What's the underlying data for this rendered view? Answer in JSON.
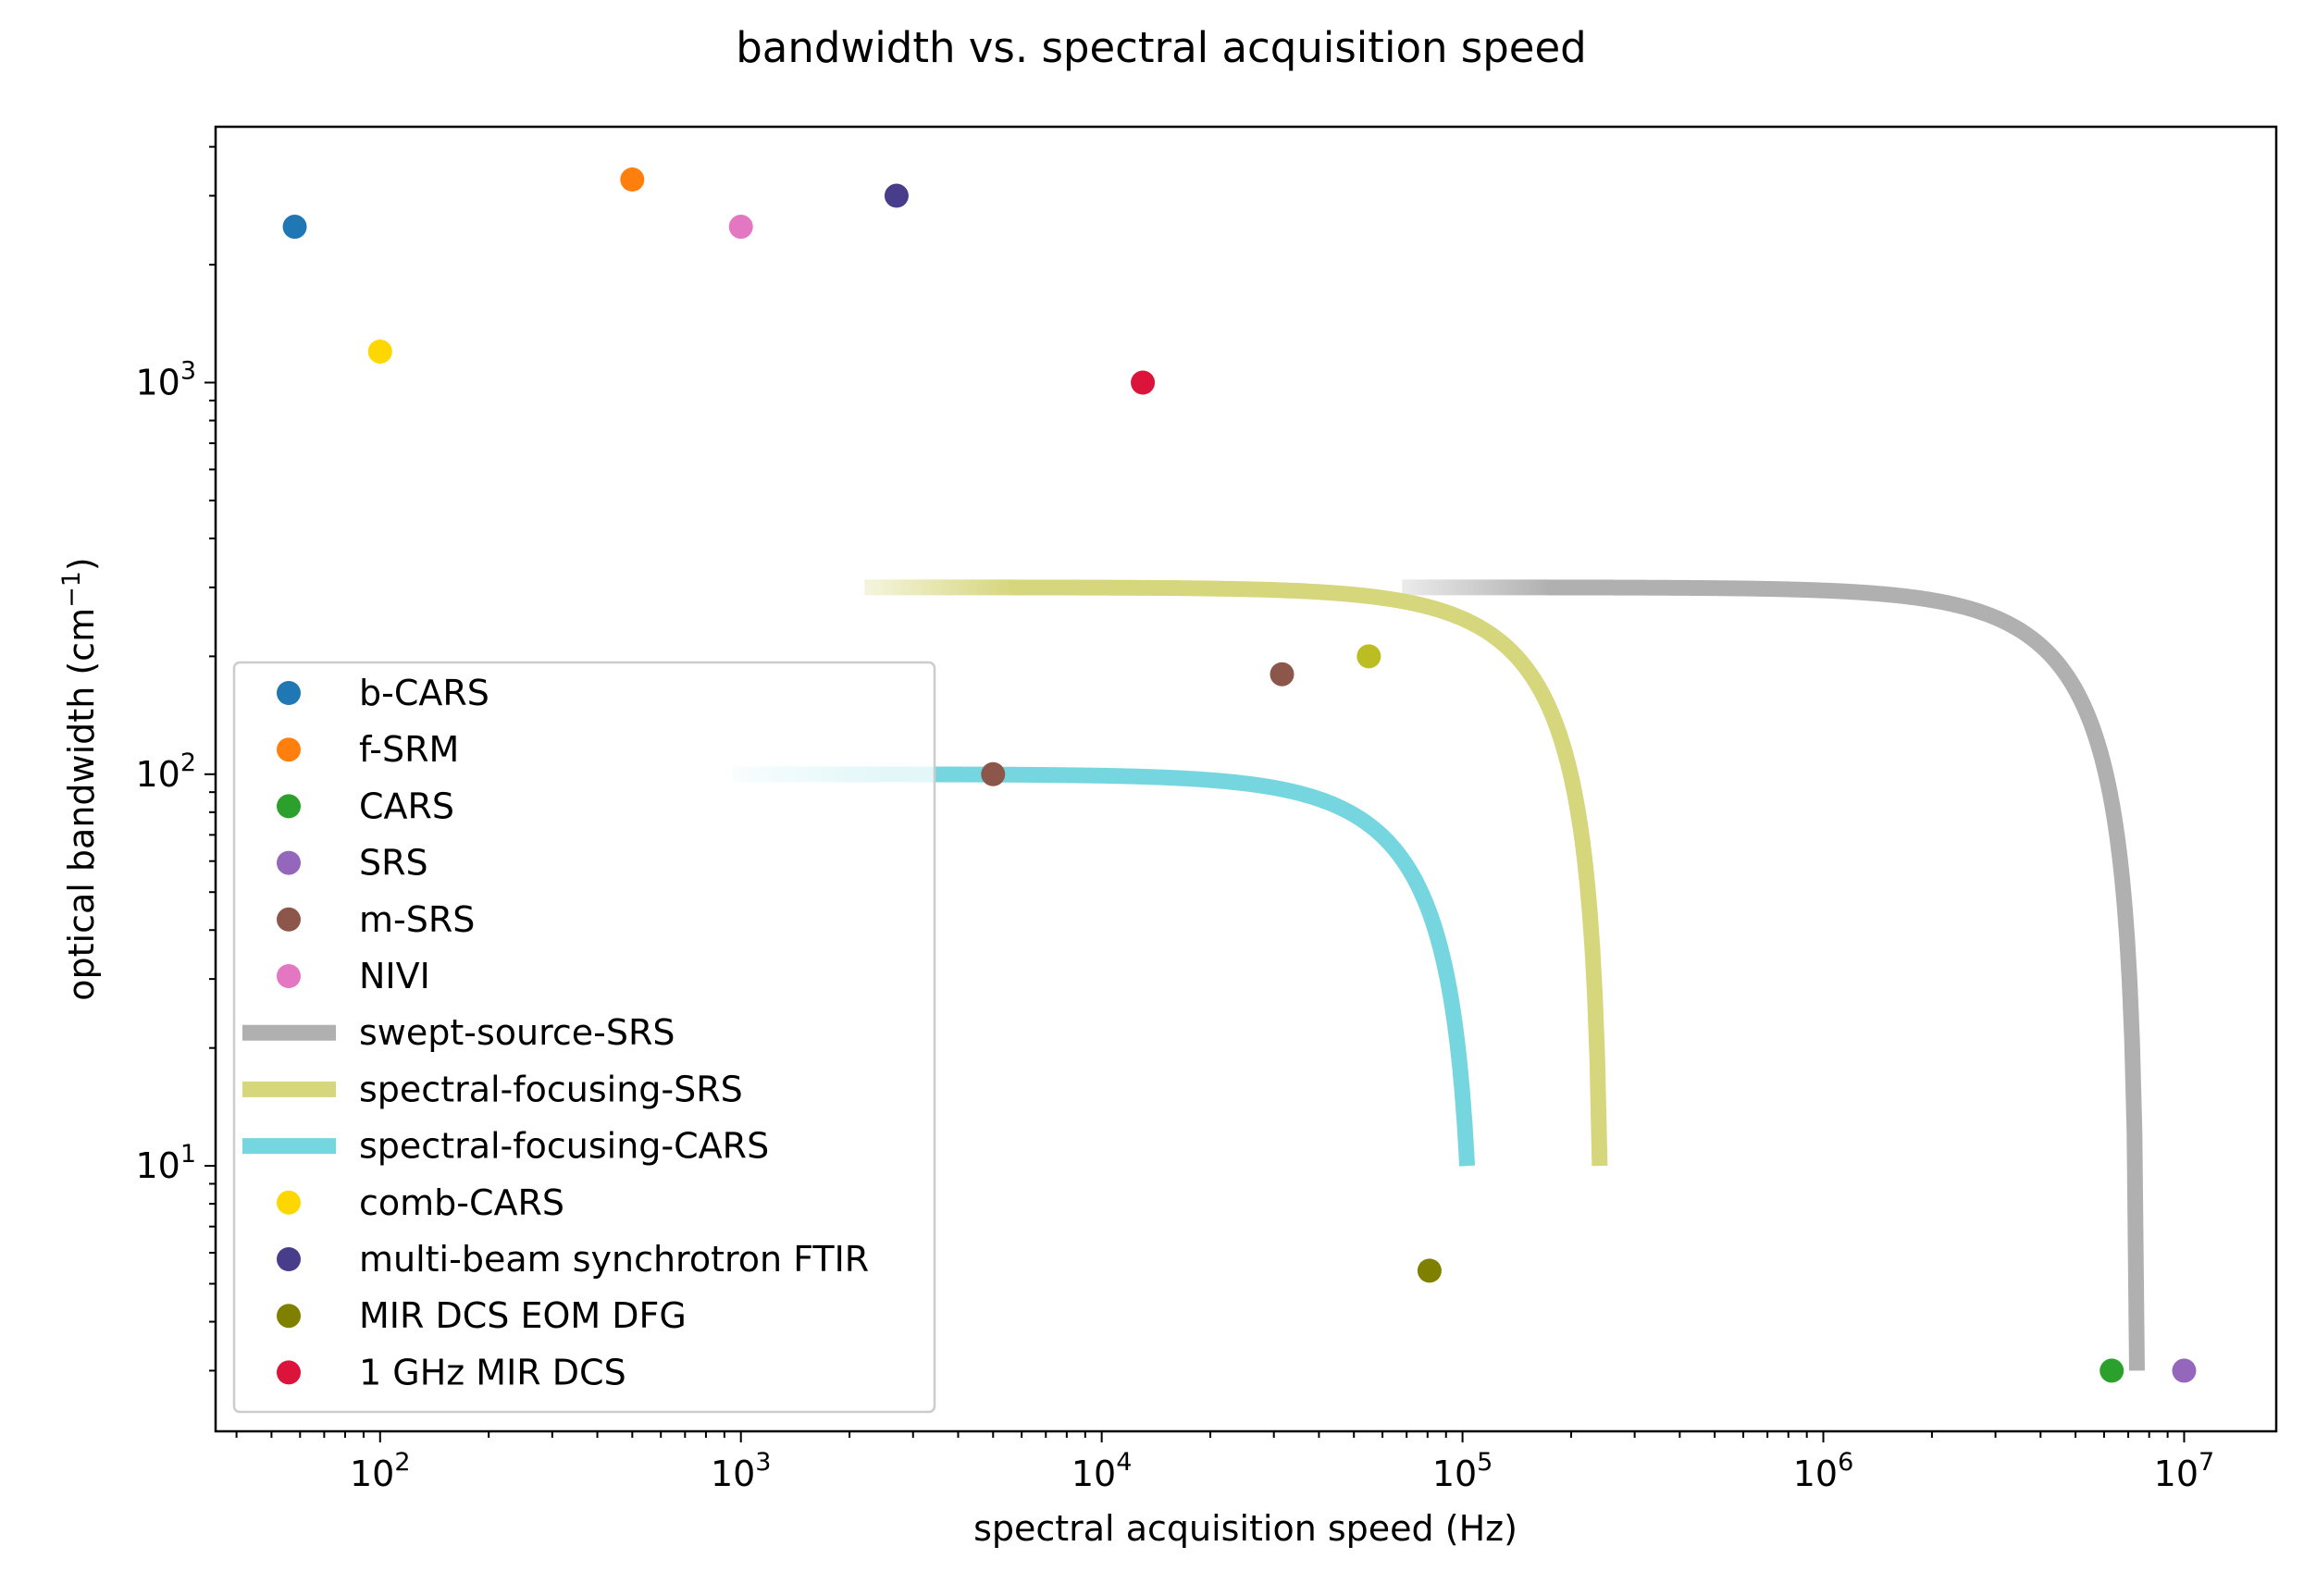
{
  "chart_data": {
    "type": "scatter",
    "title": "bandwidth vs. spectral acquisition speed",
    "xlabel": "spectral acquisition speed (Hz)",
    "ylabel": "optical bandwidth (cm",
    "ylabel_exp": "−1",
    "ylabel_close": ")",
    "xscale": "log",
    "yscale": "log",
    "xlim": [
      35,
      18000000
    ],
    "ylim": [
      2.1,
      4500
    ],
    "x_ticks": [
      {
        "value": 100,
        "base": "10",
        "exp": "2"
      },
      {
        "value": 1000,
        "base": "10",
        "exp": "3"
      },
      {
        "value": 10000,
        "base": "10",
        "exp": "4"
      },
      {
        "value": 100000,
        "base": "10",
        "exp": "5"
      },
      {
        "value": 1000000,
        "base": "10",
        "exp": "6"
      },
      {
        "value": 10000000,
        "base": "10",
        "exp": "7"
      }
    ],
    "y_ticks": [
      {
        "value": 10,
        "base": "10",
        "exp": "1"
      },
      {
        "value": 100,
        "base": "10",
        "exp": "2"
      },
      {
        "value": 1000,
        "base": "10",
        "exp": "3"
      }
    ],
    "grid": false,
    "legend_position": "lower-left",
    "series": [
      {
        "name": "b-CARS",
        "kind": "point",
        "color": "#1f77b4",
        "x": [
          58
        ],
        "y": [
          2500
        ]
      },
      {
        "name": "f-SRM",
        "kind": "point",
        "color": "#ff7f0e",
        "x": [
          500
        ],
        "y": [
          3300
        ]
      },
      {
        "name": "CARS",
        "kind": "point",
        "color": "#2ca02c",
        "x": [
          6300000
        ],
        "y": [
          3
        ]
      },
      {
        "name": "SRS",
        "kind": "point",
        "color": "#9467bd",
        "x": [
          10000000
        ],
        "y": [
          3
        ]
      },
      {
        "name": "m-SRS",
        "kind": "point",
        "color": "#8c564b",
        "x": [
          5000,
          31600
        ],
        "y": [
          100,
          180
        ]
      },
      {
        "name": "NIVI",
        "kind": "point",
        "color": "#e377c2",
        "x": [
          1000
        ],
        "y": [
          2500
        ]
      },
      {
        "name": "swept-source-SRS",
        "kind": "curve",
        "color": "#b0b0b0",
        "x_start": 68000,
        "x_end": 7400000,
        "y_start": 300,
        "y_end": 3
      },
      {
        "name": "spectral-focusing-SRS",
        "kind": "curve",
        "color": "#d6d67c",
        "x_start": 2200,
        "x_end": 240000,
        "y_start": 300,
        "y_end": 10
      },
      {
        "name": "spectral-focusing-CARS",
        "kind": "curve",
        "color": "#75d6e0",
        "x_start": 950,
        "x_end": 103000,
        "y_start": 100,
        "y_end": 10
      },
      {
        "name": "comb-CARS",
        "kind": "point",
        "color": "#ffd700",
        "x": [
          100
        ],
        "y": [
          1200
        ]
      },
      {
        "name": "multi-beam synchrotron FTIR",
        "kind": "point",
        "color": "#483d8b",
        "x": [
          2700
        ],
        "y": [
          3000
        ]
      },
      {
        "name": "MIR DCS EOM DFG",
        "kind": "point",
        "color": "#808000",
        "x": [
          81000
        ],
        "y": [
          5.4
        ]
      },
      {
        "name": "1 GHz MIR DCS",
        "kind": "point",
        "color": "#dc143c",
        "x": [
          13000
        ],
        "y": [
          1000
        ]
      }
    ],
    "extra_points": [
      {
        "color": "#bcbd22",
        "x": 55000,
        "y": 200
      }
    ]
  }
}
